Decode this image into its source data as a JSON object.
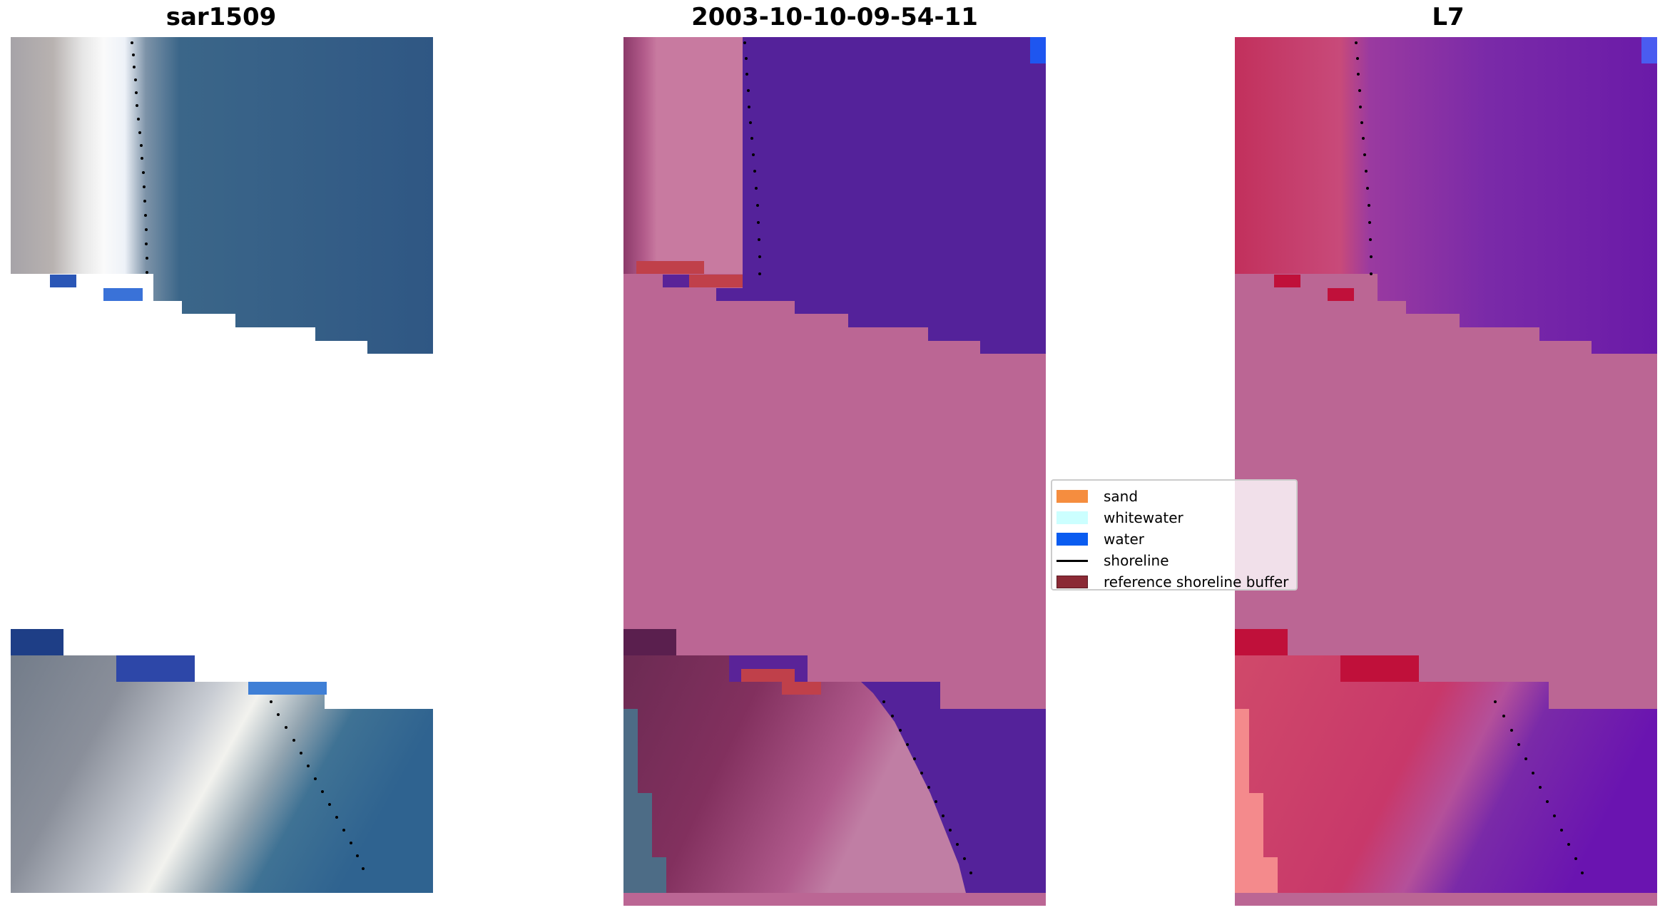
{
  "panels": [
    {
      "id": "left",
      "title": "sar1509"
    },
    {
      "id": "middle",
      "title": "2003-10-10-09-54-11"
    },
    {
      "id": "right",
      "title": "L7"
    }
  ],
  "legend": {
    "items": [
      {
        "label": "sand",
        "color": "#f58d3f",
        "kind": "patch"
      },
      {
        "label": "whitewater",
        "color": "#ccffff",
        "kind": "patch"
      },
      {
        "label": "water",
        "color": "#0a5cf0",
        "kind": "patch"
      },
      {
        "label": "shoreline",
        "color": "#000000",
        "kind": "line"
      },
      {
        "label": "reference shoreline buffer",
        "color": "#8b2a35",
        "kind": "patch"
      }
    ]
  },
  "colors": {
    "sea_blue": "#2e5a86",
    "sand_grey": "#8c8e98",
    "white_surf": "#f2f2ee",
    "mask_pink": "#bb6694",
    "class_water_purple": "#54229a",
    "class_sand_dark": "#84325e",
    "l7_red": "#c7385f",
    "l7_purple": "#7a2aa8",
    "l7_salmon": "#f48a8c",
    "buffer_red": "#bf3a48"
  }
}
